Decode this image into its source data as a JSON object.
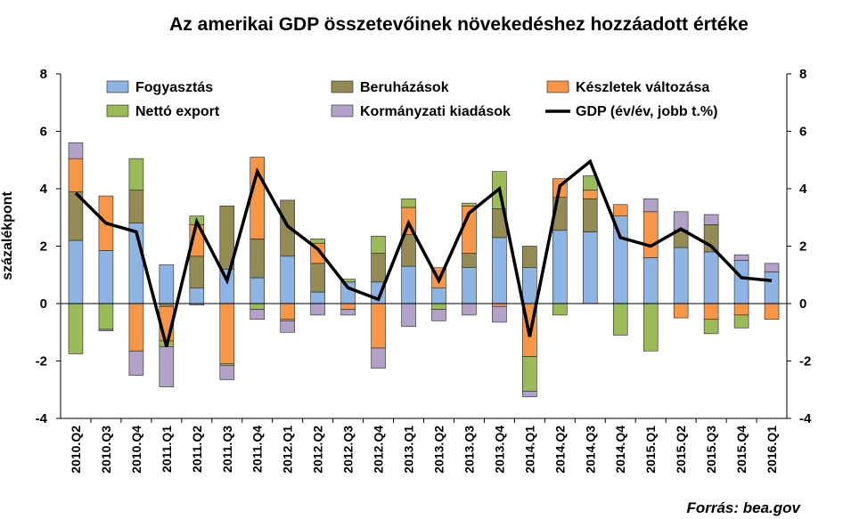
{
  "chart_data": {
    "type": "bar",
    "stacked": true,
    "title": "Az amerikai GDP összetevőinek növekedéshez hozzáadott értéke",
    "ylabel": "százalékpont",
    "source": "Forrás: bea.gov",
    "ylim": [
      -4,
      8
    ],
    "y2lim": [
      -4,
      8
    ],
    "yticks": [
      -4,
      -2,
      0,
      2,
      4,
      6,
      8
    ],
    "categories": [
      "2010.Q2",
      "2010.Q3",
      "2010.Q4",
      "2011.Q1",
      "2011.Q2",
      "2011.Q3",
      "2011.Q4",
      "2012.Q1",
      "2012.Q2",
      "2012.Q3",
      "2012.Q4",
      "2013.Q1",
      "2013.Q2",
      "2013.Q3",
      "2013.Q4",
      "2014.Q1",
      "2014.Q2",
      "2014.Q3",
      "2014.Q4",
      "2015.Q1",
      "2015.Q2",
      "2015.Q3",
      "2015.Q4",
      "2016.Q1"
    ],
    "series": [
      {
        "name": "Fogyasztás",
        "color": "#8DB4E2",
        "values": [
          2.2,
          1.85,
          2.8,
          1.35,
          0.55,
          1.2,
          0.9,
          1.65,
          0.4,
          0.75,
          0.75,
          1.3,
          0.55,
          1.25,
          2.3,
          1.25,
          2.55,
          2.5,
          3.05,
          1.6,
          1.95,
          1.8,
          1.5,
          1.1
        ]
      },
      {
        "name": "Beruházások",
        "color": "#948A54",
        "values": [
          1.7,
          0.0,
          1.15,
          -0.1,
          1.1,
          2.2,
          1.35,
          1.95,
          1.0,
          0.0,
          1.0,
          1.1,
          0.0,
          0.5,
          1.0,
          0.75,
          1.15,
          1.15,
          0.0,
          0.0,
          0.6,
          0.95,
          0.0,
          0.0
        ]
      },
      {
        "name": "Készletek változása",
        "color": "#F79646",
        "values": [
          1.15,
          1.9,
          -1.65,
          -1.2,
          1.1,
          -2.1,
          2.85,
          -0.55,
          0.7,
          -0.2,
          -1.55,
          0.95,
          0.7,
          1.65,
          -0.1,
          -1.85,
          0.65,
          0.3,
          0.4,
          1.6,
          -0.5,
          -0.55,
          -0.4,
          -0.55
        ]
      },
      {
        "name": "Nettó export",
        "color": "#9BBB59",
        "values": [
          -1.75,
          -0.9,
          1.1,
          -0.2,
          0.3,
          -0.05,
          -0.2,
          -0.05,
          0.15,
          0.1,
          0.6,
          0.3,
          -0.2,
          0.1,
          1.3,
          -1.2,
          -0.4,
          0.5,
          -1.1,
          -1.65,
          0.0,
          -0.5,
          -0.45,
          0.0
        ]
      },
      {
        "name": "Kormányzati kiadások",
        "color": "#B3A2C7",
        "values": [
          0.55,
          -0.05,
          -0.85,
          -1.4,
          -0.05,
          -0.5,
          -0.35,
          -0.4,
          -0.4,
          -0.2,
          -0.7,
          -0.8,
          -0.4,
          -0.4,
          -0.55,
          -0.2,
          0.0,
          0.0,
          0.0,
          0.45,
          0.65,
          0.35,
          0.2,
          0.3
        ]
      }
    ],
    "line": {
      "name": "GDP (év/év, jobb t.%)",
      "color": "#000000",
      "axis": "right",
      "values": [
        3.85,
        2.8,
        2.5,
        -1.5,
        2.85,
        0.8,
        4.6,
        2.7,
        1.9,
        0.55,
        0.15,
        2.8,
        0.8,
        3.15,
        4.0,
        -1.15,
        4.1,
        4.95,
        2.3,
        2.0,
        2.6,
        2.0,
        0.9,
        0.8
      ]
    },
    "legend_placement": "top"
  }
}
